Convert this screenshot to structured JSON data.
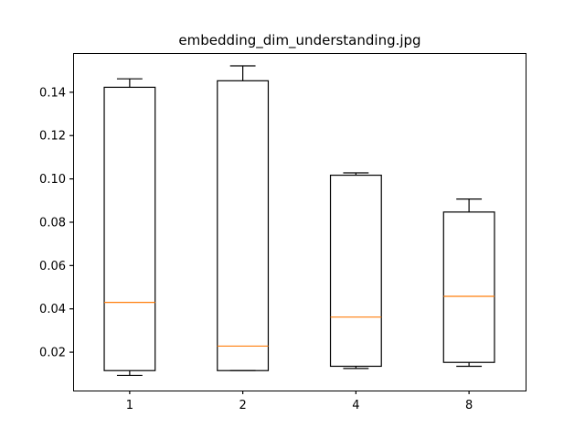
{
  "chart_data": {
    "type": "box",
    "title": "embedding_dim_understanding.jpg",
    "xlabel": "",
    "ylabel": "",
    "categories": [
      "1",
      "2",
      "4",
      "8"
    ],
    "boxes": [
      {
        "category": "1",
        "whisker_low": 0.0093,
        "q1": 0.0115,
        "median": 0.043,
        "q3": 0.1423,
        "whisker_high": 0.1462
      },
      {
        "category": "2",
        "whisker_low": 0.0115,
        "q1": 0.0115,
        "median": 0.0228,
        "q3": 0.1453,
        "whisker_high": 0.1522
      },
      {
        "category": "4",
        "whisker_low": 0.0125,
        "q1": 0.0135,
        "median": 0.0362,
        "q3": 0.1017,
        "whisker_high": 0.1028
      },
      {
        "category": "8",
        "whisker_low": 0.0135,
        "q1": 0.0153,
        "median": 0.0458,
        "q3": 0.0847,
        "whisker_high": 0.0907
      }
    ],
    "ylim": [
      0.0023,
      0.1581
    ],
    "yticks": [
      0.02,
      0.04,
      0.06,
      0.08,
      0.1,
      0.12,
      0.14
    ],
    "ytick_labels": [
      "0.02",
      "0.04",
      "0.06",
      "0.08",
      "0.10",
      "0.12",
      "0.14"
    ],
    "grid": false,
    "legend": "none",
    "colors": {
      "box": "#000000",
      "median": "#ff7f0e",
      "axes": "#000000",
      "background": "#ffffff"
    }
  }
}
